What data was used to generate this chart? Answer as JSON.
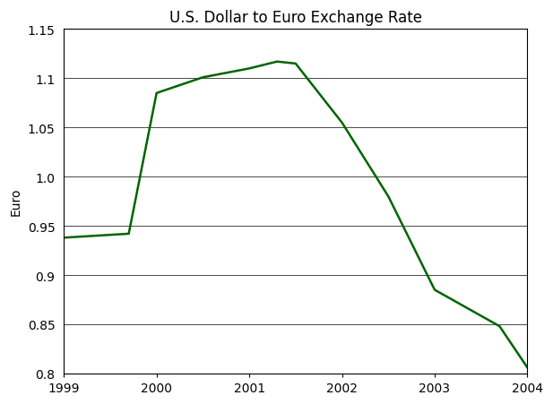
{
  "title": "U.S. Dollar to Euro Exchange Rate",
  "xlabel": "",
  "ylabel": "Euro",
  "x": [
    1999,
    1999.7,
    2000,
    2000.5,
    2001,
    2001.3,
    2001.5,
    2002,
    2002.5,
    2003,
    2003.7,
    2004
  ],
  "y": [
    0.938,
    0.942,
    1.085,
    1.101,
    1.11,
    1.117,
    1.115,
    1.055,
    0.98,
    0.885,
    0.848,
    0.806
  ],
  "line_color": "#006400",
  "line_width": 1.8,
  "ylim": [
    0.8,
    1.15
  ],
  "yticks": [
    0.8,
    0.85,
    0.9,
    0.95,
    1.0,
    1.05,
    1.1,
    1.15
  ],
  "xticks": [
    1999,
    2000,
    2001,
    2002,
    2003,
    2004
  ],
  "grid_color": "#000000",
  "background_color": "#ffffff",
  "title_fontsize": 12,
  "axis_fontsize": 10,
  "tick_fontsize": 10,
  "xlim_left": 1999,
  "xlim_right": 2004
}
